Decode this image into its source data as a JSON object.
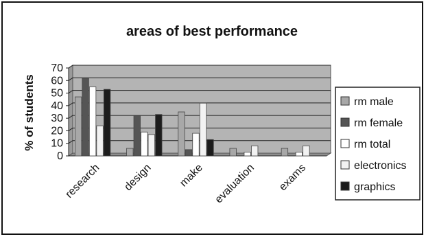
{
  "chart_data": {
    "type": "bar",
    "title": "areas of best performance",
    "ylabel": "% of students",
    "xlabel": "",
    "ylim": [
      0,
      70
    ],
    "yticks": [
      0,
      10,
      20,
      30,
      40,
      50,
      60,
      70
    ],
    "categories": [
      "research",
      "design",
      "make",
      "evaluation",
      "exams"
    ],
    "grid": true,
    "legend_position": "right",
    "series": [
      {
        "name": "rm male",
        "color": "#a8a8a8",
        "values": [
          47,
          6,
          35,
          6,
          6
        ]
      },
      {
        "name": "rm female",
        "color": "#555555",
        "values": [
          62,
          32,
          5,
          0,
          0
        ]
      },
      {
        "name": "rm total",
        "color": "#ffffff",
        "values": [
          55,
          19,
          18,
          3,
          3
        ]
      },
      {
        "name": "electronics",
        "color": "#f2f2f2",
        "values": [
          24,
          17,
          42,
          8,
          8
        ]
      },
      {
        "name": "graphics",
        "color": "#1c1c1c",
        "values": [
          53,
          33,
          13,
          0,
          0
        ]
      }
    ],
    "plot_background": "#b4b4b4"
  }
}
